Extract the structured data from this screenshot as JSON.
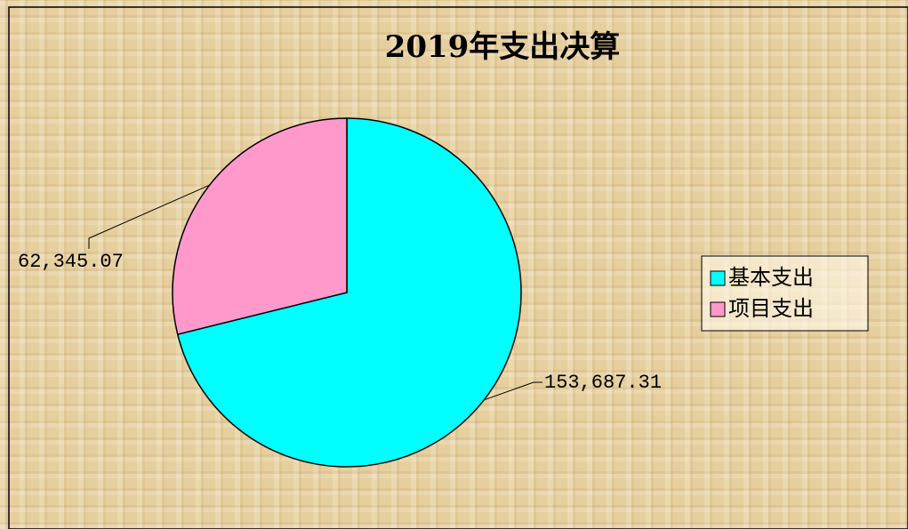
{
  "chart_data": {
    "type": "pie",
    "title": "2019年支出决算",
    "categories": [
      "基本支出",
      "项目支出"
    ],
    "values": [
      153687.31,
      62345.07
    ],
    "value_labels": [
      "153,687.31",
      "62,345.07"
    ],
    "colors": [
      "#00ffff",
      "#ff99cc"
    ],
    "legend": "right"
  }
}
